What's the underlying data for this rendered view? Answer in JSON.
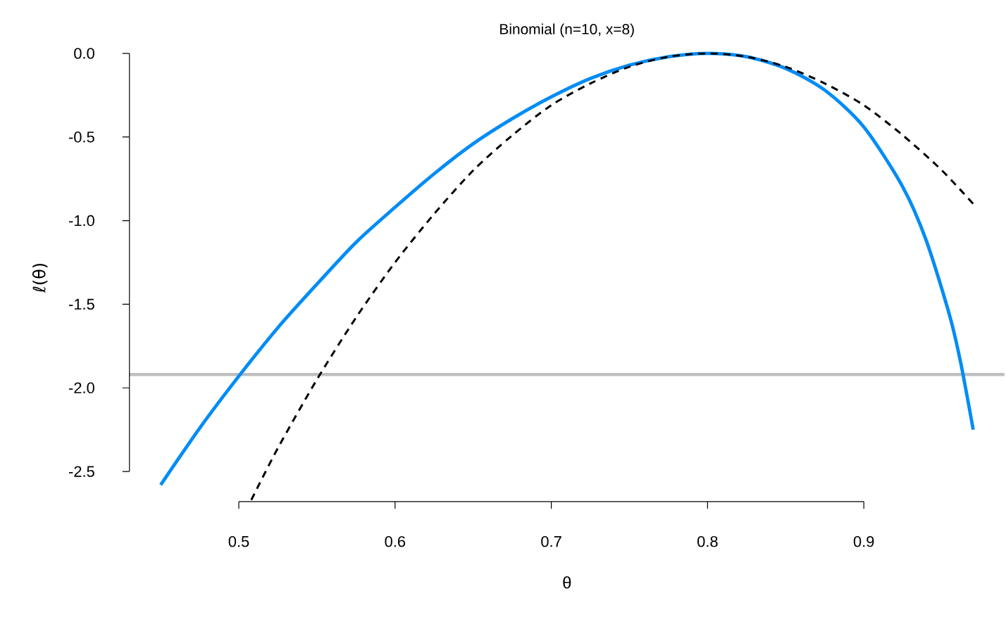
{
  "chart_data": {
    "type": "line",
    "title": "Binomial (n=10, x=8)",
    "xlabel": "θ",
    "ylabel": "ℓ(θ)",
    "xlim": [
      0.43,
      0.99
    ],
    "ylim": [
      -2.68,
      0
    ],
    "xticks": [
      0.5,
      0.6,
      0.7,
      0.8,
      0.9
    ],
    "yticks": [
      {
        "value": 0,
        "label": "0.0"
      },
      {
        "value": -0.5,
        "label": "-0.5"
      },
      {
        "value": -1,
        "label": "-1.0"
      },
      {
        "value": -1.5,
        "label": "-1.5"
      },
      {
        "value": -2,
        "label": "-2.0"
      },
      {
        "value": -2.5,
        "label": "-2.5"
      }
    ],
    "ref_lines": [
      {
        "axis": "y",
        "value": -1.92,
        "color": "#bebebe"
      }
    ],
    "series": [
      {
        "color": "#008cf5",
        "line_style": "solid",
        "x": [
          0.45,
          0.475,
          0.5,
          0.525,
          0.55,
          0.575,
          0.6,
          0.625,
          0.65,
          0.675,
          0.7,
          0.725,
          0.75,
          0.775,
          0.8,
          0.825,
          0.85,
          0.875,
          0.9,
          0.925,
          0.94,
          0.955,
          0.962,
          0.97
        ],
        "values": [
          -2.58,
          -2.24,
          -1.93,
          -1.64,
          -1.38,
          -1.13,
          -0.92,
          -0.72,
          -0.54,
          -0.39,
          -0.26,
          -0.15,
          -0.07,
          -0.02,
          0,
          -0.02,
          -0.09,
          -0.22,
          -0.44,
          -0.8,
          -1.12,
          -1.57,
          -1.85,
          -2.25
        ]
      },
      {
        "color": "#000000",
        "line_style": "dashed",
        "x": [
          0.508,
          0.525,
          0.55,
          0.575,
          0.6,
          0.625,
          0.65,
          0.675,
          0.7,
          0.725,
          0.75,
          0.775,
          0.8,
          0.825,
          0.85,
          0.875,
          0.9,
          0.925,
          0.95,
          0.97
        ],
        "values": [
          -2.67,
          -2.36,
          -1.95,
          -1.58,
          -1.25,
          -0.96,
          -0.7,
          -0.49,
          -0.31,
          -0.18,
          -0.08,
          -0.02,
          0,
          -0.02,
          -0.08,
          -0.18,
          -0.31,
          -0.49,
          -0.7,
          -0.9
        ]
      }
    ]
  }
}
